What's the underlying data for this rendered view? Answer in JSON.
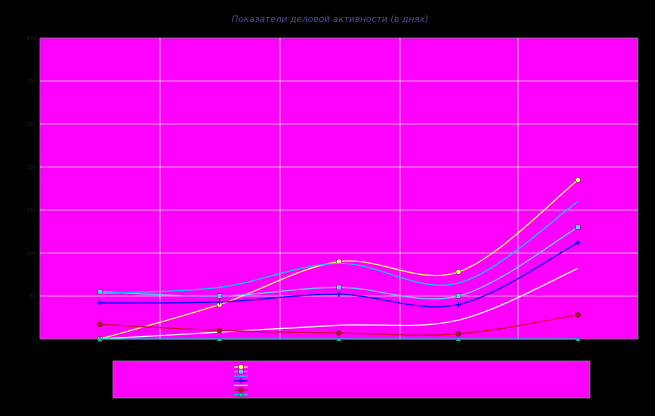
{
  "chart_data": {
    "type": "line",
    "title": "Показатели деловой активности (в днях)",
    "xlabel": "",
    "ylabel": "",
    "categories": [
      "—",
      "—",
      "—",
      "—",
      "—"
    ],
    "y_ticks": [
      0,
      50,
      100,
      150,
      200,
      250,
      300,
      350
    ],
    "ylim": [
      0,
      350
    ],
    "grid": true,
    "legend_placement": "bottom",
    "plot_background": "#ff00ff",
    "background": "#000000",
    "series": [
      {
        "name": "",
        "color": "#ffff66",
        "marker": "circle",
        "values": [
          0,
          40,
          90,
          78,
          185
        ]
      },
      {
        "name": "",
        "color": "#66ccff",
        "marker": "square",
        "values": [
          55,
          50,
          60,
          50,
          130
        ]
      },
      {
        "name": "",
        "color": "#00ccff",
        "marker": "none",
        "values": [
          53,
          60,
          88,
          65,
          160
        ]
      },
      {
        "name": "",
        "color": "#0000ff",
        "marker": "plus",
        "values": [
          42,
          43,
          52,
          40,
          112
        ]
      },
      {
        "name": "",
        "color": "#ffffff",
        "marker": "none",
        "values": [
          0,
          8,
          16,
          22,
          82
        ]
      },
      {
        "name": "",
        "color": "#cc0033",
        "marker": "circle",
        "values": [
          17,
          10,
          7,
          6,
          28
        ]
      },
      {
        "name": "",
        "color": "#00cccc",
        "marker": "triangle",
        "values": [
          0,
          0,
          0,
          0,
          0
        ]
      }
    ]
  }
}
